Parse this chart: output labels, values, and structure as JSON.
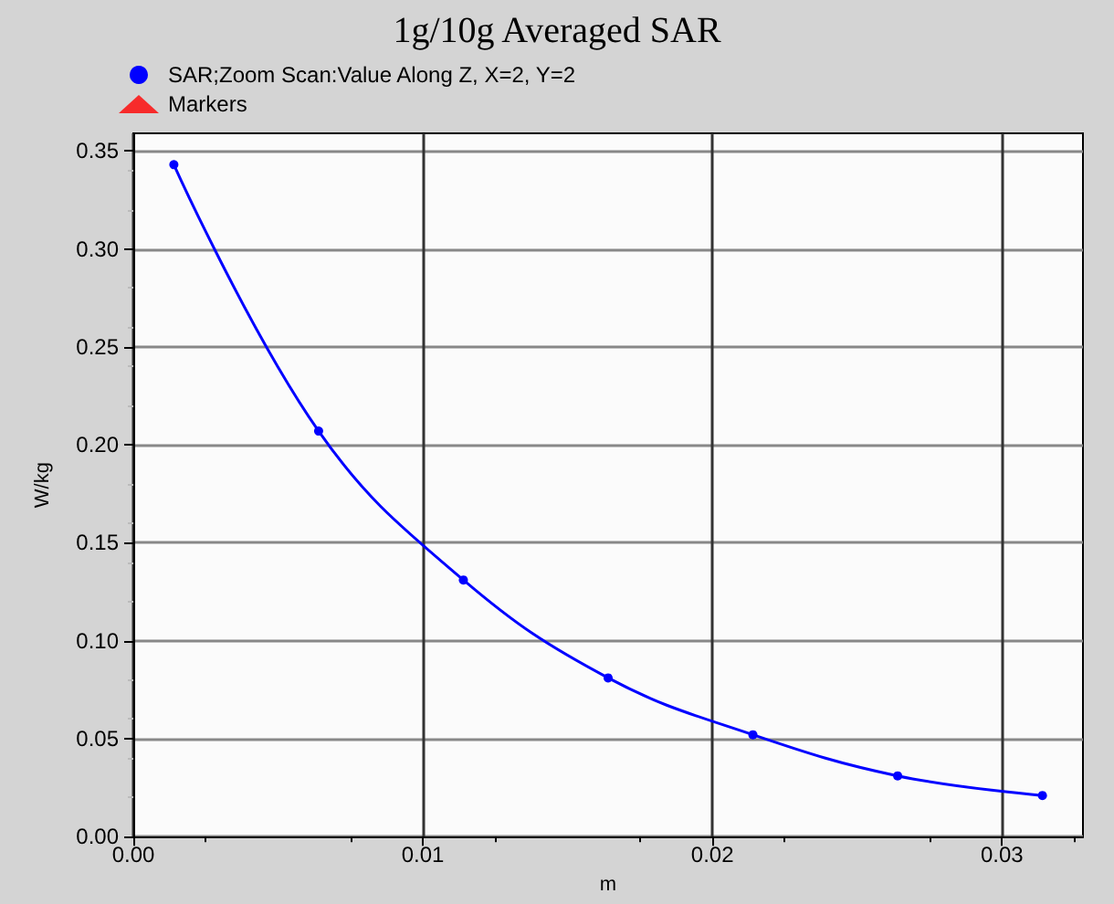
{
  "chart_data": {
    "type": "line",
    "title": "1g/10g Averaged SAR",
    "xlabel": "m",
    "ylabel": "W/kg",
    "x": [
      0.0014,
      0.0064,
      0.0114,
      0.0164,
      0.0214,
      0.0264,
      0.0314
    ],
    "series": [
      {
        "name": "SAR;Zoom Scan:Value Along Z, X=2, Y=2",
        "color": "#0000ff",
        "marker": "circle",
        "values": [
          0.343,
          0.207,
          0.131,
          0.081,
          0.052,
          0.031,
          0.021
        ]
      },
      {
        "name": "Markers",
        "color": "#ff0000",
        "type": "scatter",
        "marker": "triangle",
        "values": [
          null,
          null,
          null,
          null,
          null,
          null,
          null
        ]
      }
    ],
    "xlim": [
      0,
      0.0328
    ],
    "xticks": [
      {
        "value": 0,
        "label": "0.00"
      },
      0.01,
      0.02,
      0.03
    ],
    "ylim": [
      0,
      0.359
    ],
    "yticks": [
      {
        "value": 0,
        "label": "0.00"
      },
      0.05,
      {
        "value": 0.1,
        "label": "0.10"
      },
      0.15,
      {
        "value": 0.2,
        "label": "0.20"
      },
      0.25,
      {
        "value": 0.3,
        "label": "0.30"
      },
      0.35
    ],
    "grid": true,
    "legend": "top left",
    "line_style": "solid"
  }
}
